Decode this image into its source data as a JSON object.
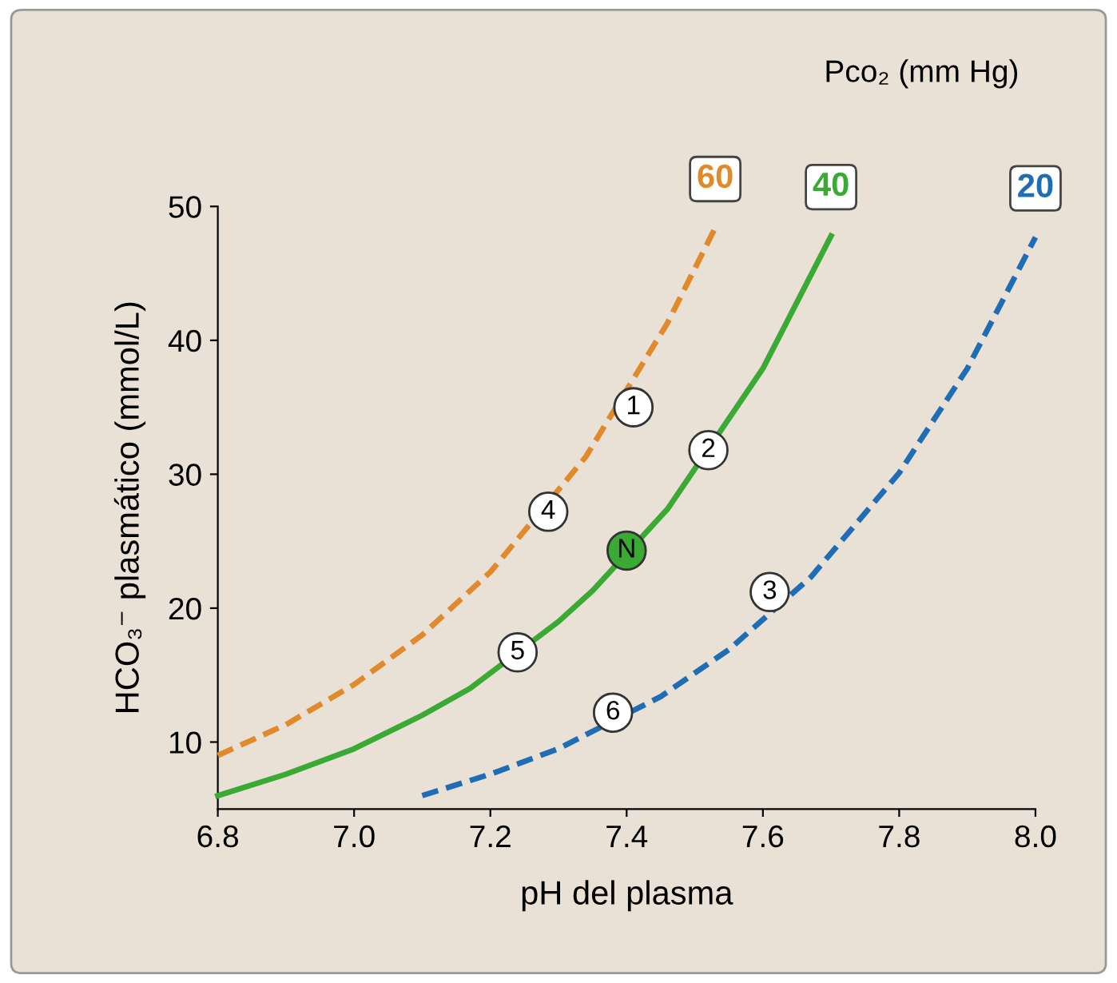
{
  "chart_data": {
    "type": "line",
    "legend_title": "Pco₂ (mm Hg)",
    "xlabel": "pH del plasma",
    "ylabel": "HCO₃⁻ plasmático (mmol/L)",
    "xlim": [
      6.8,
      8.0
    ],
    "xticks": [
      {
        "value": 6.8,
        "label": "6.8"
      },
      {
        "value": 7.0,
        "label": "7.0"
      },
      {
        "value": 7.2,
        "label": "7.2"
      },
      {
        "value": 7.4,
        "label": "7.4"
      },
      {
        "value": 7.6,
        "label": "7.6"
      },
      {
        "value": 7.8,
        "label": "7.8"
      },
      {
        "value": 8.0,
        "label": "8.0"
      }
    ],
    "ylim": [
      5,
      50
    ],
    "yticks": [
      10,
      20,
      30,
      40,
      50
    ],
    "grid": false,
    "series": [
      {
        "name": "60",
        "color": "#e08a2c",
        "line_style": "dashed",
        "x": [
          6.8,
          6.9,
          7.0,
          7.1,
          7.2,
          7.34,
          7.46,
          7.53
        ],
        "values": [
          9.0,
          11.3,
          14.3,
          18.0,
          22.7,
          31.3,
          41.3,
          48.4
        ]
      },
      {
        "name": "40",
        "color": "#3aaa35",
        "line_style": "solid",
        "x": [
          6.8,
          6.9,
          7.0,
          7.1,
          7.17,
          7.3,
          7.35,
          7.46,
          7.6,
          7.7
        ],
        "values": [
          6.0,
          7.6,
          9.5,
          12.0,
          14.0,
          19.0,
          21.3,
          27.4,
          37.9,
          47.8
        ]
      },
      {
        "name": "20",
        "color": "#1f6db5",
        "line_style": "dashed",
        "x": [
          7.1,
          7.2,
          7.3,
          7.45,
          7.55,
          7.67,
          7.8,
          7.9,
          8.0
        ],
        "values": [
          6.0,
          7.6,
          9.5,
          13.4,
          16.9,
          22.3,
          30.1,
          37.9,
          47.7
        ]
      }
    ],
    "annotations": [
      {
        "text": "1",
        "x": 7.41,
        "y": 35.0
      },
      {
        "text": "2",
        "x": 7.52,
        "y": 31.8
      },
      {
        "text": "3",
        "x": 7.61,
        "y": 21.2
      },
      {
        "text": "4",
        "x": 7.285,
        "y": 27.2
      },
      {
        "text": "N",
        "x": 7.4,
        "y": 24.3
      },
      {
        "text": "5",
        "x": 7.24,
        "y": 16.7
      },
      {
        "text": "6",
        "x": 7.38,
        "y": 12.2
      }
    ]
  }
}
